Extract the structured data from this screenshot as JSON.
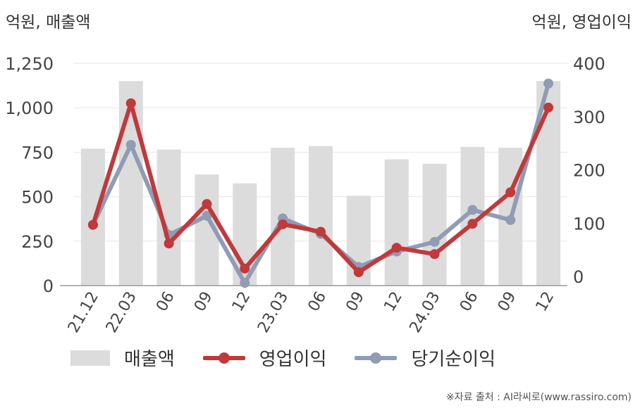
{
  "unit_left": "억원, 매출액",
  "unit_right": "억원, 영업이익",
  "footer": "※자료 출처 : AI라씨로(www.rassiro.com)",
  "colors": {
    "sales": "#dcdcdc",
    "operating": "#c0393b",
    "net": "#909bb5",
    "grid": "#e6e6e6",
    "axis": "#999999"
  },
  "chart_data": {
    "type": "bar+line",
    "categories": [
      "21.12",
      "22.03",
      "06",
      "09",
      "12",
      "23.03",
      "06",
      "09",
      "12",
      "24.03",
      "06",
      "09",
      "12"
    ],
    "left_axis": {
      "ylim": [
        0,
        1250
      ],
      "ticks": [
        "0",
        "250",
        "500",
        "750",
        "1,000",
        "1,250"
      ],
      "tick_values": [
        0,
        250,
        500,
        750,
        1000,
        1250
      ]
    },
    "right_axis": {
      "ylim": [
        -17,
        400
      ],
      "ticks": [
        "0",
        "100",
        "200",
        "300",
        "400"
      ],
      "tick_values": [
        0,
        100,
        200,
        300,
        400
      ]
    },
    "series": [
      {
        "name": "매출액",
        "type": "bar",
        "axis": "left",
        "values": [
          770,
          1150,
          765,
          625,
          575,
          775,
          785,
          505,
          710,
          685,
          780,
          775,
          1150
        ]
      },
      {
        "name": "영업이익",
        "type": "line",
        "axis": "right",
        "values": [
          97,
          325,
          62,
          136,
          15,
          98,
          84,
          8,
          54,
          42,
          99,
          158,
          317
        ]
      },
      {
        "name": "당기순이익",
        "type": "line",
        "axis": "right",
        "values": [
          97,
          247,
          78,
          114,
          -12,
          109,
          80,
          18,
          47,
          65,
          125,
          106,
          362
        ]
      }
    ],
    "legend_position": "bottom",
    "grid": true
  }
}
